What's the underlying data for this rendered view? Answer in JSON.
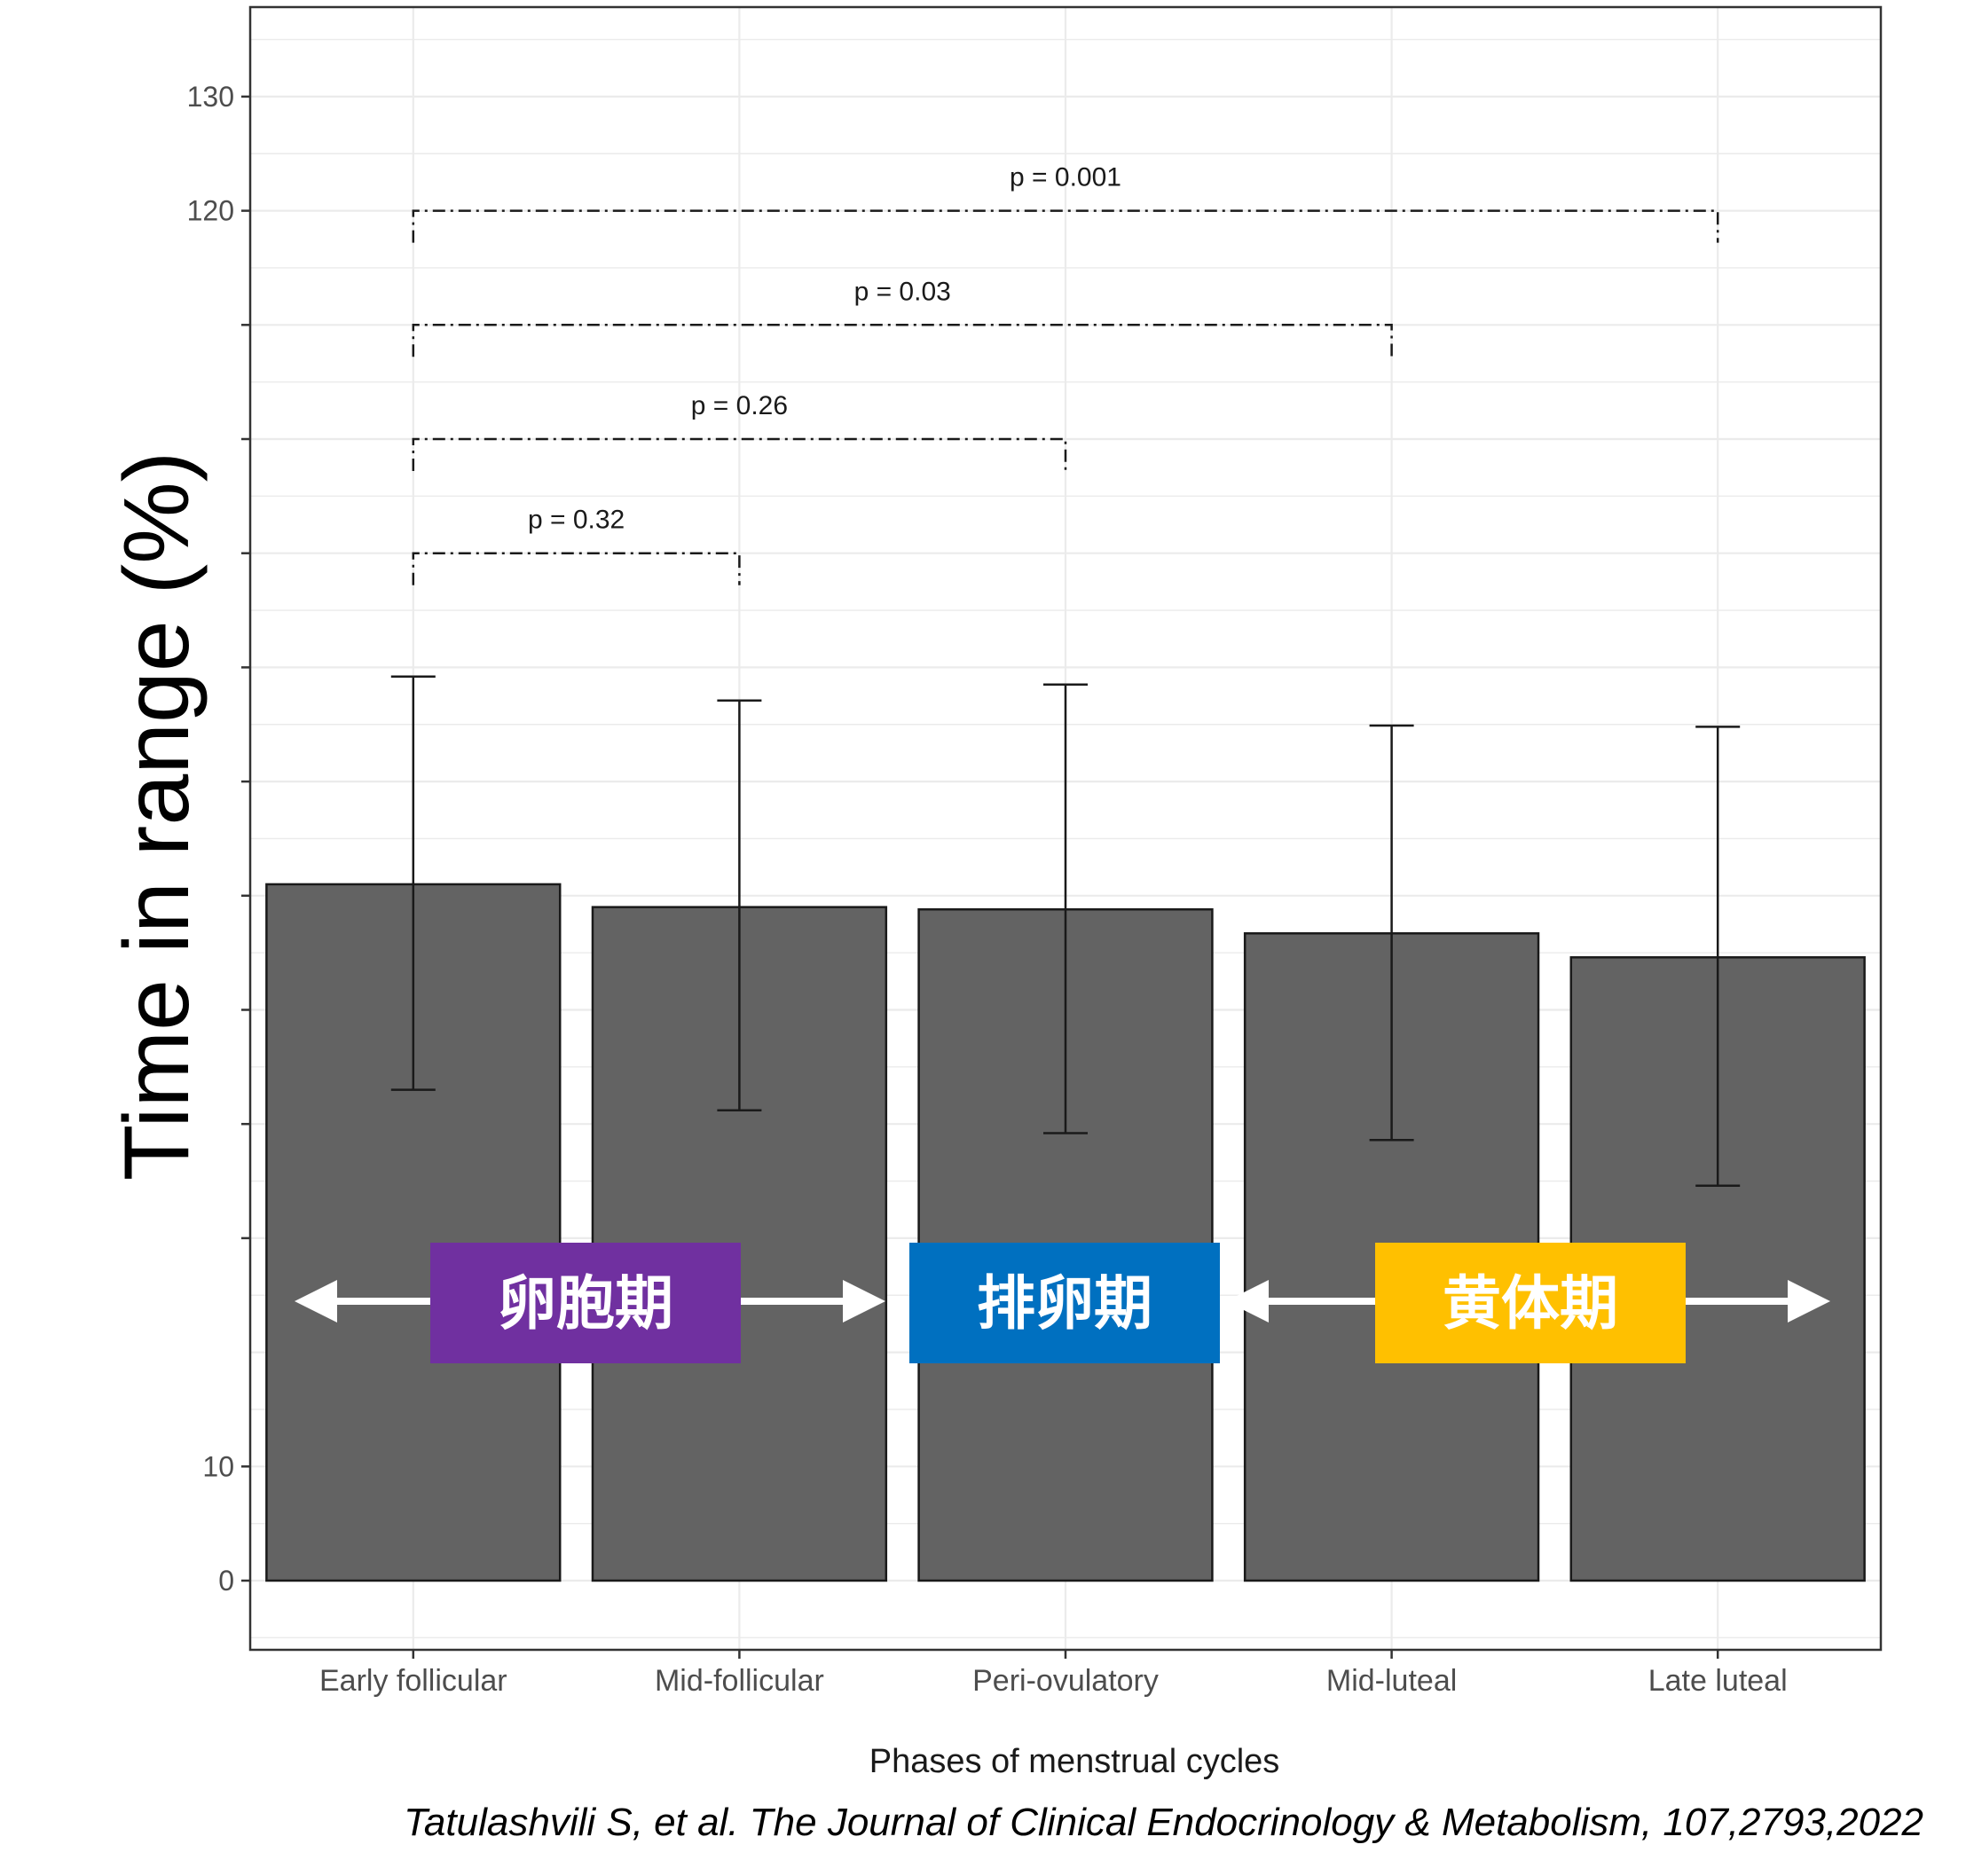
{
  "chart_data": {
    "type": "bar",
    "categories": [
      "Early follicular",
      "Mid-follicular",
      "Peri-ovulatory",
      "Mid-luteal",
      "Late luteal"
    ],
    "values": [
      61,
      59,
      58.8,
      56.7,
      54.6
    ],
    "error_upper": [
      79.2,
      77.1,
      78.5,
      74.9,
      74.8
    ],
    "error_lower": [
      43,
      41.2,
      39.2,
      38.6,
      34.6
    ],
    "xlabel": "Phases of menstrual cycles",
    "ylabel": "Time in range (%)",
    "y_ticks": [
      0,
      10,
      120,
      130
    ],
    "ylim": [
      -6,
      138
    ],
    "grid": true,
    "comparisons": [
      {
        "from": "Early follicular",
        "to": "Mid-follicular",
        "y": 90,
        "label": "p = 0.32"
      },
      {
        "from": "Early follicular",
        "to": "Peri-ovulatory",
        "y": 100,
        "label": "p = 0.26"
      },
      {
        "from": "Early follicular",
        "to": "Mid-luteal",
        "y": 110,
        "label": "p = 0.03"
      },
      {
        "from": "Early follicular",
        "to": "Late luteal",
        "y": 120,
        "label": "p = 0.001"
      }
    ],
    "phase_labels": [
      {
        "text": "卵胞期",
        "color": "#7030A0"
      },
      {
        "text": "排卵期",
        "color": "#0070C0"
      },
      {
        "text": "黄体期",
        "color": "#FFC000"
      }
    ],
    "colors": {
      "bar_fill": "#636363",
      "bar_edge": "#1a1a1a",
      "panel_border": "#333333",
      "grid": "#ebebeb"
    }
  },
  "citation": "Tatulashvili S, et al. The Journal of Clinical Endocrinology & Metabolism, 107,2793,2022"
}
